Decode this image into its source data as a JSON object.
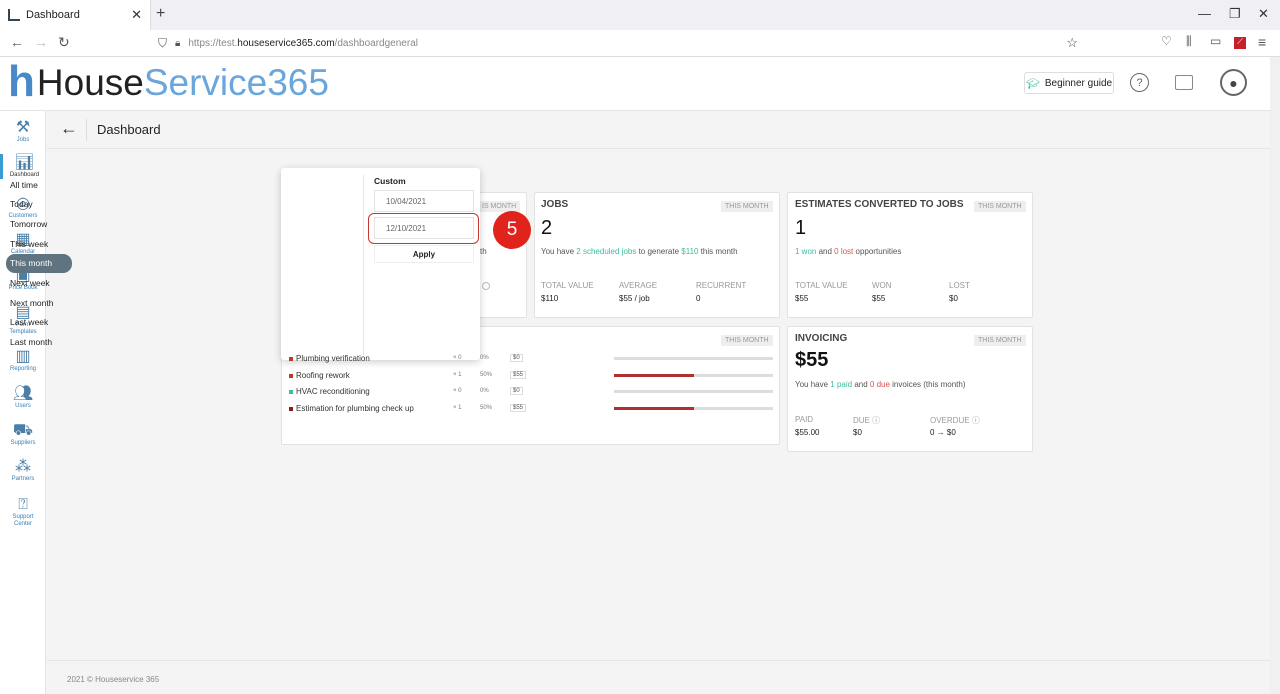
{
  "browser": {
    "tab_title": "Dashboard",
    "url_prefix": "https://test.",
    "url_domain": "houseservice365.com",
    "url_path": "/dashboardgeneral"
  },
  "app": {
    "logo_house": "House",
    "logo_service": "Service365",
    "beginner_guide": "Beginner guide",
    "page_title": "Dashboard",
    "footer": "2021 © Houseservice 365"
  },
  "sidebar": {
    "items": [
      {
        "label": "Jobs",
        "icon": "tools-icon"
      },
      {
        "label": "Dashboard",
        "icon": "chart-icon"
      },
      {
        "label": "Customers",
        "icon": "customers-icon"
      },
      {
        "label": "Calendar",
        "icon": "calendar-icon"
      },
      {
        "label": "Price Book",
        "icon": "pricebook-icon"
      },
      {
        "label": "Form",
        "label2": "Templates",
        "icon": "form-icon"
      },
      {
        "label": "Reporting",
        "icon": "reporting-icon"
      },
      {
        "label": "Users",
        "icon": "users-icon"
      },
      {
        "label": "Suppliers",
        "icon": "truck-icon"
      },
      {
        "label": "Partners",
        "icon": "partners-icon"
      },
      {
        "label": "Support",
        "label2": "Center",
        "icon": "help-icon"
      }
    ]
  },
  "daterange": {
    "options": [
      "All time",
      "Today",
      "Tomorrow",
      "This week",
      "This month",
      "Next week",
      "Next month",
      "Last week",
      "Last month"
    ],
    "selected": "This month",
    "custom_label": "Custom",
    "start_date": "10/04/2021",
    "end_date": "12/10/2021",
    "apply": "Apply"
  },
  "step_marker": "5",
  "cards": {
    "hidden_badge": "IS MONTH",
    "hidden_text": "th",
    "jobs": {
      "title": "JOBS",
      "badge": "THIS MONTH",
      "count": "2",
      "sentence_a": "You have ",
      "scheduled": "2 scheduled jobs",
      "sentence_b": " to generate ",
      "amount": "$110",
      "sentence_c": " this month",
      "total_label": "TOTAL VALUE",
      "total_value": "$110",
      "avg_label": "AVERAGE",
      "avg_value": "$55 / job",
      "rec_label": "RECURRENT",
      "rec_value": "0"
    },
    "estimates": {
      "title": "ESTIMATES CONVERTED TO JOBS",
      "badge": "THIS MONTH",
      "count": "1",
      "won": "1 won",
      "and": " and ",
      "lost": "0 lost",
      "tail": " opportunities",
      "total_label": "TOTAL VALUE",
      "total_value": "$55",
      "won_label": "WON",
      "won_value": "$55",
      "lost_label": "LOST",
      "lost_value": "$0"
    },
    "services": {
      "badge": "THIS MONTH",
      "rows": [
        {
          "name": "Plumbing verification",
          "count": "× 0",
          "pct": "0%",
          "price": "$0",
          "color": "#c0392b",
          "fill": 0
        },
        {
          "name": "Roofing rework",
          "count": "× 1",
          "pct": "50%",
          "price": "$55",
          "color": "#c0392b",
          "fill": 0.5
        },
        {
          "name": "HVAC reconditioning",
          "count": "× 0",
          "pct": "0%",
          "price": "$0",
          "color": "#3dbc9e",
          "fill": 0
        },
        {
          "name": "Estimation for plumbing check up",
          "count": "× 1",
          "pct": "50%",
          "price": "$55",
          "color": "#8b1c1c",
          "fill": 0.5
        }
      ]
    },
    "invoicing": {
      "title": "INVOICING",
      "badge": "THIS MONTH",
      "amount": "$55",
      "s1": "You have ",
      "paid": "1 paid",
      "s2": " and ",
      "due": "0 due",
      "s3": " invoices (this month)",
      "paid_label": "PAID",
      "paid_value": "$55.00",
      "due_label": "DUE",
      "due_value": "$0",
      "overdue_label": "OVERDUE",
      "overdue_value": "0 → $0"
    }
  }
}
